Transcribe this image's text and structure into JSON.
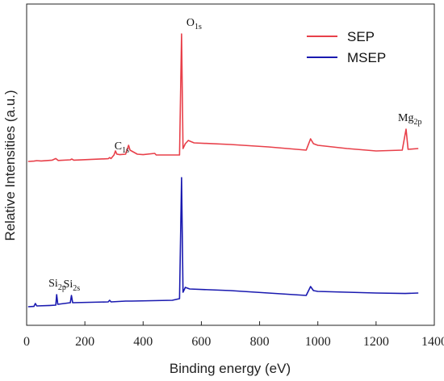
{
  "chart_data": {
    "type": "line",
    "xlabel": "Binding energy (eV)",
    "ylabel": "Relative Intensities (a.u.)",
    "xlim": [
      0,
      1400
    ],
    "x_ticks": [
      "0",
      "200",
      "400",
      "600",
      "800",
      "1000",
      "1200",
      "1400"
    ],
    "y_ticks_shown": false,
    "legend": {
      "position": "top-right",
      "entries": [
        "SEP",
        "MSEP"
      ]
    },
    "series": [
      {
        "name": "SEP",
        "color": "#e8404a",
        "baseline": 0.6,
        "points": [
          [
            5,
            0.6
          ],
          [
            25,
            0.62
          ],
          [
            35,
            0.65
          ],
          [
            50,
            0.63
          ],
          [
            88,
            0.68
          ],
          [
            100,
            0.78
          ],
          [
            108,
            0.66
          ],
          [
            150,
            0.7
          ],
          [
            155,
            0.75
          ],
          [
            162,
            0.68
          ],
          [
            280,
            0.77
          ],
          [
            285,
            0.84
          ],
          [
            290,
            0.78
          ],
          [
            300,
            1.0
          ],
          [
            305,
            1.25
          ],
          [
            310,
            1.05
          ],
          [
            320,
            1.02
          ],
          [
            340,
            1.05
          ],
          [
            350,
            1.6
          ],
          [
            355,
            1.3
          ],
          [
            380,
            1.05
          ],
          [
            400,
            1.02
          ],
          [
            440,
            1.1
          ],
          [
            445,
            1.0
          ],
          [
            500,
            1.0
          ],
          [
            525,
            1.0
          ],
          [
            532,
            8.5
          ],
          [
            537,
            1.4
          ],
          [
            545,
            1.7
          ],
          [
            555,
            1.9
          ],
          [
            575,
            1.75
          ],
          [
            700,
            1.65
          ],
          [
            830,
            1.5
          ],
          [
            960,
            1.3
          ],
          [
            975,
            2.0
          ],
          [
            985,
            1.7
          ],
          [
            1000,
            1.6
          ],
          [
            1100,
            1.4
          ],
          [
            1200,
            1.25
          ],
          [
            1290,
            1.3
          ],
          [
            1303,
            2.6
          ],
          [
            1310,
            1.35
          ],
          [
            1345,
            1.4
          ]
        ],
        "peak_labels": [
          {
            "main": "C",
            "sub": "1s",
            "x": 285
          },
          {
            "main": "O",
            "sub": "1s",
            "x": 532
          },
          {
            "main": "Mg",
            "sub": "2p",
            "x": 1303
          }
        ]
      },
      {
        "name": "MSEP",
        "color": "#1a1ab0",
        "baseline": 0.6,
        "points": [
          [
            5,
            0.6
          ],
          [
            25,
            0.62
          ],
          [
            30,
            0.8
          ],
          [
            35,
            0.65
          ],
          [
            80,
            0.68
          ],
          [
            100,
            0.7
          ],
          [
            103,
            1.35
          ],
          [
            107,
            0.75
          ],
          [
            150,
            0.85
          ],
          [
            154,
            1.3
          ],
          [
            158,
            0.85
          ],
          [
            280,
            0.9
          ],
          [
            285,
            1.0
          ],
          [
            290,
            0.9
          ],
          [
            340,
            0.95
          ],
          [
            360,
            0.95
          ],
          [
            500,
            1.0
          ],
          [
            525,
            1.1
          ],
          [
            532,
            8.6
          ],
          [
            537,
            1.5
          ],
          [
            545,
            1.8
          ],
          [
            560,
            1.7
          ],
          [
            700,
            1.6
          ],
          [
            830,
            1.45
          ],
          [
            960,
            1.3
          ],
          [
            975,
            1.85
          ],
          [
            985,
            1.6
          ],
          [
            1000,
            1.55
          ],
          [
            1100,
            1.5
          ],
          [
            1200,
            1.45
          ],
          [
            1300,
            1.42
          ],
          [
            1345,
            1.45
          ]
        ],
        "peak_labels": [
          {
            "main": "Si",
            "sub": "2p",
            "x": 103
          },
          {
            "main": "Si",
            "sub": "2s",
            "x": 154
          }
        ]
      }
    ]
  }
}
